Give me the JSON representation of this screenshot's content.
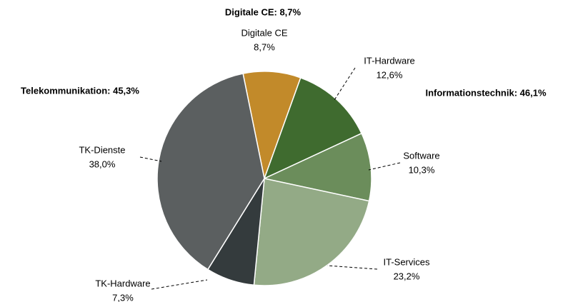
{
  "chart_data": {
    "type": "pie",
    "categories": [
      "Digitale CE",
      "IT-Hardware",
      "Software",
      "IT-Services",
      "TK-Hardware",
      "TK-Dienste"
    ],
    "values": [
      8.7,
      12.6,
      10.3,
      23.2,
      7.3,
      38.0
    ],
    "value_labels": [
      "8,7%",
      "12,6%",
      "10,3%",
      "23,2%",
      "7,3%",
      "38,0%"
    ],
    "colors": [
      "#c28a2a",
      "#3f6b2f",
      "#6b8d5b",
      "#93aa86",
      "#343b3d",
      "#5b5f60"
    ],
    "annotations": [
      "Digitale CE: 8,7%",
      "Informationstechnik: 46,1%",
      "Telekommunikation: 45,3%"
    ]
  }
}
